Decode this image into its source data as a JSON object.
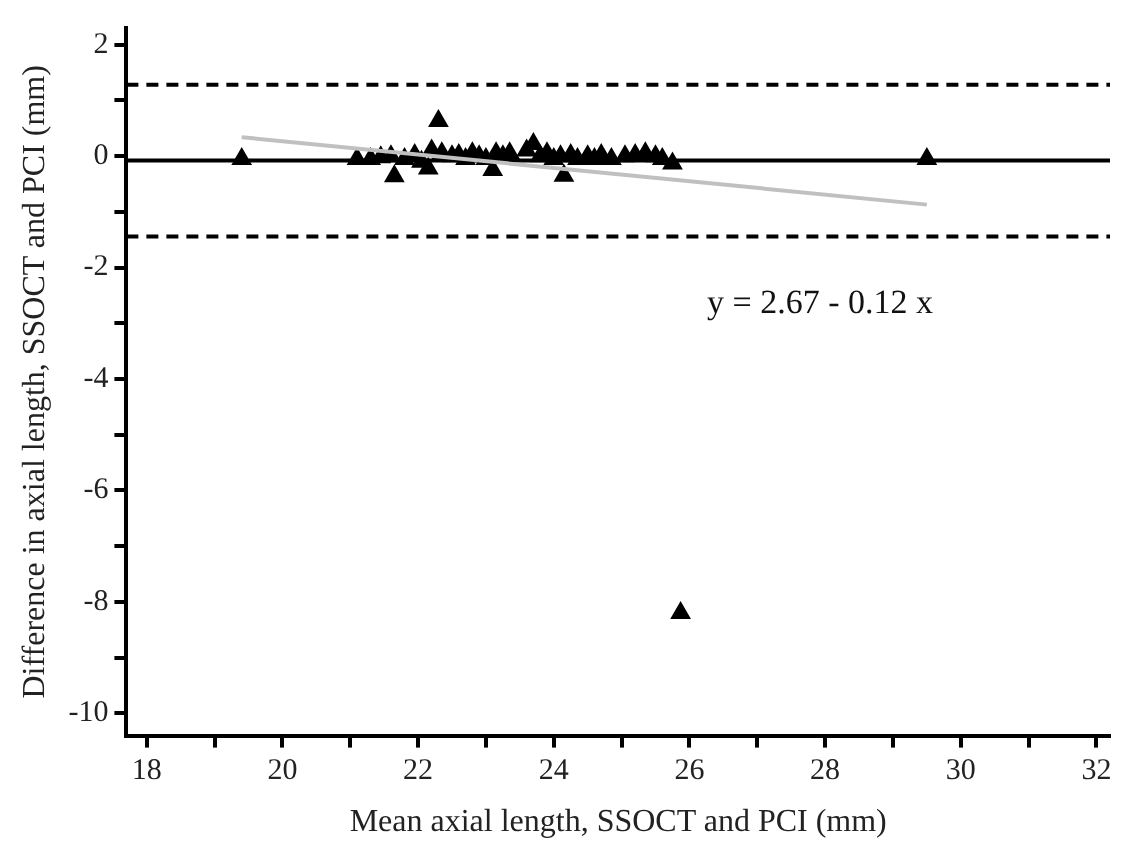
{
  "chart_data": {
    "type": "scatter",
    "xlabel": "Mean axial length, SSOCT and PCI (mm)",
    "ylabel": "Difference in axial length, SSOCT and PCI (mm)",
    "xlim": [
      17.7,
      32.2
    ],
    "ylim": [
      -10.4,
      2.3
    ],
    "xticks": [
      18,
      {
        "value": 19,
        "label": null
      },
      20,
      {
        "value": 21,
        "label": null
      },
      22,
      {
        "value": 23,
        "label": null
      },
      24,
      {
        "value": 25,
        "label": null
      },
      26,
      {
        "value": 27,
        "label": null
      },
      28,
      {
        "value": 29,
        "label": null
      },
      30,
      {
        "value": 31,
        "label": null
      },
      32
    ],
    "yticks": [
      -10,
      {
        "value": -9,
        "label": null
      },
      -8,
      {
        "value": -7,
        "label": null
      },
      -6,
      {
        "value": -5,
        "label": null
      },
      -4,
      {
        "value": -3,
        "label": null
      },
      -2,
      {
        "value": -1,
        "label": null
      },
      0,
      {
        "value": 1,
        "label": null
      },
      2
    ],
    "marker": "triangle",
    "legend": false,
    "grid": false,
    "series": [
      {
        "type": "scatter",
        "color": "#000000",
        "x": [
          19.4,
          21.1,
          21.3,
          21.45,
          21.6,
          21.65,
          21.8,
          21.95,
          22.05,
          22.15,
          22.2,
          22.3,
          22.35,
          22.5,
          22.6,
          22.7,
          22.8,
          22.9,
          23.0,
          23.1,
          23.15,
          23.25,
          23.35,
          23.45,
          23.55,
          23.6,
          23.7,
          23.8,
          23.9,
          24.0,
          24.1,
          24.15,
          24.25,
          24.35,
          24.5,
          24.6,
          24.7,
          24.85,
          25.05,
          25.2,
          25.35,
          25.5,
          25.6,
          25.75,
          25.87,
          29.5
        ],
        "values": [
          -0.05,
          -0.05,
          -0.05,
          -0.02,
          0.0,
          -0.36,
          -0.05,
          0.02,
          -0.1,
          -0.22,
          0.1,
          0.63,
          0.05,
          0.0,
          0.02,
          -0.05,
          0.05,
          0.0,
          -0.05,
          -0.25,
          0.05,
          0.0,
          0.05,
          null,
          null,
          0.1,
          0.22,
          0.0,
          0.05,
          -0.05,
          0.0,
          -0.35,
          0.02,
          -0.05,
          0.0,
          -0.05,
          0.02,
          -0.05,
          0.0,
          0.02,
          0.05,
          0.0,
          -0.05,
          -0.13,
          -8.2,
          -0.05
        ]
      },
      {
        "type": "line",
        "color": "#c0c0c0",
        "marker": "none",
        "x": [
          19.4,
          29.5
        ],
        "values": [
          0.34,
          -0.87
        ]
      }
    ],
    "ref_lines": [
      {
        "axis": "y",
        "value": 1.28,
        "color": "#000000",
        "line_style": "dashed"
      },
      {
        "axis": "y",
        "value": -0.08,
        "color": "#000000",
        "line_style": "solid"
      },
      {
        "axis": "y",
        "value": -1.44,
        "color": "#000000",
        "line_style": "dashed"
      }
    ],
    "annotations": [
      "y = 2.67 - 0.12 x"
    ]
  }
}
